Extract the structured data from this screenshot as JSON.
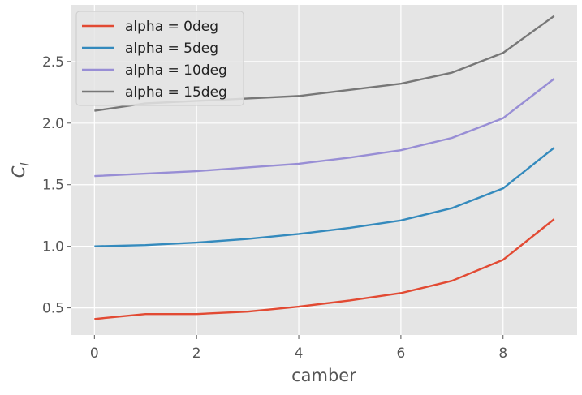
{
  "chart_data": {
    "type": "line",
    "title": "",
    "xlabel": "camber",
    "ylabel": "C_l",
    "ylabel_display": {
      "main": "C",
      "sub": "l"
    },
    "x": [
      0,
      1,
      2,
      3,
      4,
      5,
      6,
      7,
      8,
      9
    ],
    "xlim": [
      -0.45,
      9.45
    ],
    "ylim": [
      0.28,
      2.96
    ],
    "xticks": [
      0,
      2,
      4,
      6,
      8
    ],
    "yticks": [
      0.5,
      1.0,
      1.5,
      2.0,
      2.5
    ],
    "xtick_labels": [
      "0",
      "2",
      "4",
      "6",
      "8"
    ],
    "ytick_labels": [
      "0.5",
      "1.0",
      "1.5",
      "2.0",
      "2.5"
    ],
    "grid": true,
    "legend_position": "top-left",
    "style": {
      "background": "#e5e5e5",
      "grid_color": "#ffffff"
    },
    "series": [
      {
        "name": "alpha = 0deg",
        "color": "#e24a33",
        "values": [
          0.41,
          0.45,
          0.45,
          0.47,
          0.51,
          0.56,
          0.62,
          0.72,
          0.89,
          1.22
        ]
      },
      {
        "name": "alpha = 5deg",
        "color": "#348abd",
        "values": [
          1.0,
          1.01,
          1.03,
          1.06,
          1.1,
          1.15,
          1.21,
          1.31,
          1.47,
          1.8
        ]
      },
      {
        "name": "alpha = 10deg",
        "color": "#988ed5",
        "values": [
          1.57,
          1.59,
          1.61,
          1.64,
          1.67,
          1.72,
          1.78,
          1.88,
          2.04,
          2.36
        ]
      },
      {
        "name": "alpha = 15deg",
        "color": "#777777",
        "values": [
          2.1,
          2.16,
          2.18,
          2.2,
          2.22,
          2.27,
          2.32,
          2.41,
          2.57,
          2.87
        ]
      }
    ]
  }
}
